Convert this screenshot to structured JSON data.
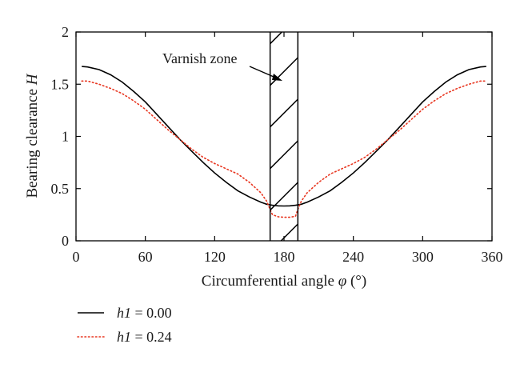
{
  "chart_data": {
    "type": "line",
    "xlabel": "Circumferential angle φ (°)",
    "ylabel": "Bearing clearance H",
    "xlim": [
      0,
      360
    ],
    "ylim": [
      0,
      2
    ],
    "xticks": [
      0,
      60,
      120,
      180,
      240,
      300,
      360
    ],
    "yticks": [
      0,
      0.5,
      1,
      1.5,
      2
    ],
    "ytick_labels": [
      "0",
      "0.5",
      "1",
      "1.5",
      "2"
    ],
    "grid": false,
    "legend_position": "bottom-left (below plot)",
    "annotation": {
      "text": "Varnish zone",
      "region_x": [
        168,
        192
      ]
    },
    "series": [
      {
        "name": "h1 = 0.00",
        "name_italic": "h1",
        "name_rest": " = 0.00",
        "color": "#000000",
        "style": "solid",
        "x": [
          5,
          10,
          20,
          30,
          40,
          50,
          60,
          70,
          80,
          90,
          100,
          110,
          120,
          130,
          140,
          150,
          160,
          165,
          170,
          175,
          180,
          185,
          190,
          195,
          200,
          210,
          220,
          230,
          240,
          250,
          260,
          270,
          280,
          290,
          300,
          310,
          320,
          330,
          340,
          350,
          355
        ],
        "y": [
          1.67,
          1.665,
          1.64,
          1.59,
          1.52,
          1.43,
          1.33,
          1.21,
          1.09,
          0.97,
          0.86,
          0.75,
          0.65,
          0.56,
          0.48,
          0.42,
          0.37,
          0.35,
          0.34,
          0.335,
          0.333,
          0.335,
          0.34,
          0.35,
          0.37,
          0.42,
          0.48,
          0.56,
          0.65,
          0.75,
          0.86,
          0.97,
          1.09,
          1.21,
          1.33,
          1.43,
          1.52,
          1.59,
          1.64,
          1.665,
          1.67
        ]
      },
      {
        "name": "h1 = 0.24",
        "name_italic": "h1",
        "name_rest": " = 0.24",
        "color": "#e8351f",
        "style": "dotted",
        "x": [
          5,
          10,
          20,
          30,
          40,
          50,
          60,
          70,
          80,
          90,
          100,
          110,
          120,
          130,
          140,
          150,
          160,
          165,
          168,
          170,
          175,
          180,
          185,
          190,
          192,
          195,
          200,
          210,
          220,
          230,
          240,
          250,
          260,
          270,
          280,
          290,
          300,
          310,
          320,
          330,
          340,
          350,
          355
        ],
        "y": [
          1.53,
          1.53,
          1.5,
          1.46,
          1.41,
          1.34,
          1.26,
          1.16,
          1.06,
          0.97,
          0.88,
          0.8,
          0.74,
          0.69,
          0.64,
          0.56,
          0.46,
          0.38,
          0.3,
          0.25,
          0.23,
          0.225,
          0.225,
          0.235,
          0.3,
          0.38,
          0.46,
          0.56,
          0.64,
          0.69,
          0.74,
          0.8,
          0.88,
          0.97,
          1.06,
          1.16,
          1.26,
          1.34,
          1.41,
          1.46,
          1.5,
          1.53,
          1.53
        ]
      }
    ]
  }
}
